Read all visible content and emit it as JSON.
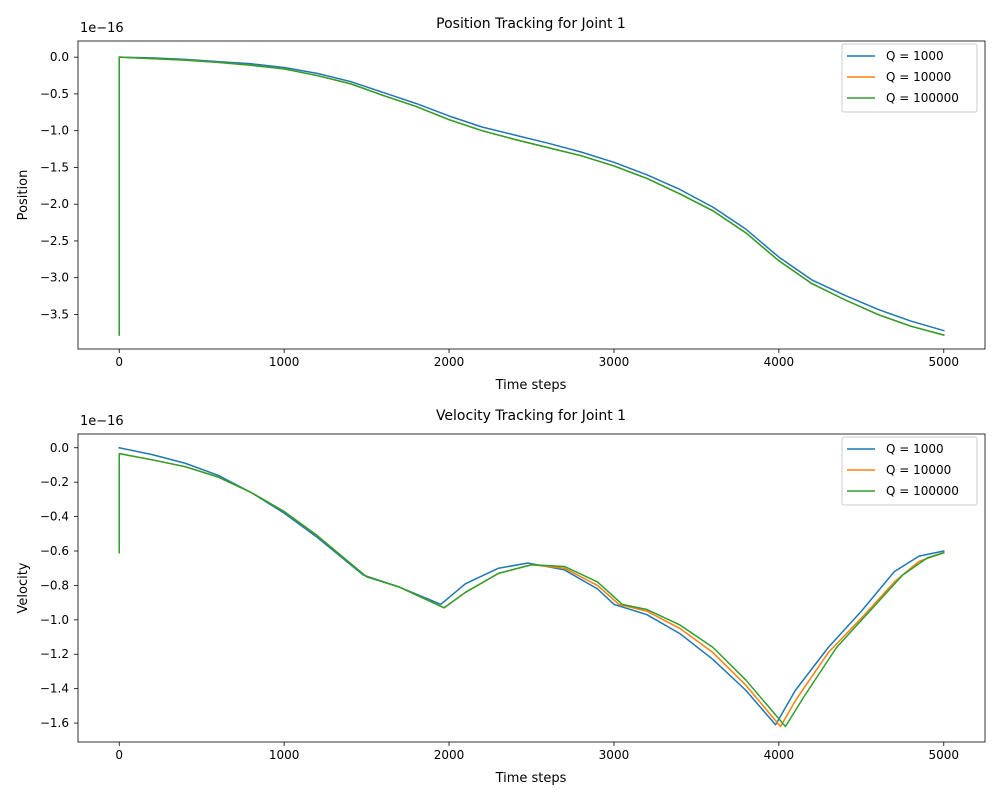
{
  "chart_data": [
    {
      "type": "line",
      "title": "Position Tracking for Joint 1",
      "xlabel": "Time steps",
      "ylabel": "Position",
      "offset_text": "1e−16",
      "xlim": [
        -250,
        5250
      ],
      "ylim": [
        -3.97,
        0.22
      ],
      "xticks": [
        0,
        1000,
        2000,
        3000,
        4000,
        5000
      ],
      "xtick_labels": [
        "0",
        "1000",
        "2000",
        "3000",
        "4000",
        "5000"
      ],
      "yticks": [
        0.0,
        -0.5,
        -1.0,
        -1.5,
        -2.0,
        -2.5,
        -3.0,
        -3.5
      ],
      "ytick_labels": [
        "0.0",
        "−0.5",
        "−1.0",
        "−1.5",
        "−2.0",
        "−2.5",
        "−3.0",
        "−3.5"
      ],
      "legend_position": "top-right",
      "grid": false,
      "series": [
        {
          "name": "Q = 1000",
          "color": "#1f77b4",
          "x": [
            0,
            200,
            400,
            600,
            800,
            1000,
            1200,
            1400,
            1600,
            1800,
            2000,
            2200,
            2400,
            2600,
            2800,
            3000,
            3200,
            3400,
            3600,
            3800,
            4000,
            4200,
            4400,
            4600,
            4800,
            5000
          ],
          "y": [
            0.0,
            -0.01,
            -0.03,
            -0.06,
            -0.09,
            -0.14,
            -0.22,
            -0.33,
            -0.48,
            -0.63,
            -0.8,
            -0.95,
            -1.06,
            -1.17,
            -1.29,
            -1.43,
            -1.6,
            -1.8,
            -2.04,
            -2.34,
            -2.72,
            -3.03,
            -3.24,
            -3.43,
            -3.59,
            -3.72
          ]
        },
        {
          "name": "Q = 10000",
          "color": "#ff7f0e",
          "x": [
            0,
            0.01,
            5,
            200,
            400,
            600,
            800,
            1000,
            1200,
            1400,
            1600,
            1800,
            2000,
            2200,
            2400,
            2600,
            2800,
            3000,
            3200,
            3400,
            3600,
            3800,
            4000,
            4200,
            4400,
            4600,
            4800,
            5000
          ],
          "y": [
            -3.78,
            0.0,
            0.0,
            -0.02,
            -0.04,
            -0.07,
            -0.11,
            -0.16,
            -0.25,
            -0.36,
            -0.52,
            -0.67,
            -0.85,
            -1.0,
            -1.12,
            -1.23,
            -1.34,
            -1.48,
            -1.65,
            -1.86,
            -2.09,
            -2.39,
            -2.77,
            -3.08,
            -3.3,
            -3.5,
            -3.66,
            -3.78
          ]
        },
        {
          "name": "Q = 100000",
          "color": "#2ca02c",
          "x": [
            0,
            0.01,
            5,
            200,
            400,
            600,
            800,
            1000,
            1200,
            1400,
            1600,
            1800,
            2000,
            2200,
            2400,
            2600,
            2800,
            3000,
            3200,
            3400,
            3600,
            3800,
            4000,
            4200,
            4400,
            4600,
            4800,
            5000
          ],
          "y": [
            -3.78,
            0.0,
            0.0,
            -0.02,
            -0.04,
            -0.07,
            -0.11,
            -0.16,
            -0.25,
            -0.36,
            -0.52,
            -0.67,
            -0.85,
            -1.0,
            -1.12,
            -1.23,
            -1.34,
            -1.48,
            -1.65,
            -1.86,
            -2.09,
            -2.39,
            -2.77,
            -3.08,
            -3.3,
            -3.5,
            -3.66,
            -3.78
          ]
        }
      ]
    },
    {
      "type": "line",
      "title": "Velocity Tracking for Joint 1",
      "xlabel": "Time steps",
      "ylabel": "Velocity",
      "offset_text": "1e−16",
      "xlim": [
        -250,
        5250
      ],
      "ylim": [
        -1.71,
        0.08
      ],
      "xticks": [
        0,
        1000,
        2000,
        3000,
        4000,
        5000
      ],
      "xtick_labels": [
        "0",
        "1000",
        "2000",
        "3000",
        "4000",
        "5000"
      ],
      "yticks": [
        0.0,
        -0.2,
        -0.4,
        -0.6,
        -0.8,
        -1.0,
        -1.2,
        -1.4,
        -1.6
      ],
      "ytick_labels": [
        "0.0",
        "−0.2",
        "−0.4",
        "−0.6",
        "−0.8",
        "−1.0",
        "−1.2",
        "−1.4",
        "−1.6"
      ],
      "legend_position": "top-right",
      "grid": false,
      "series": [
        {
          "name": "Q = 1000",
          "color": "#1f77b4",
          "x": [
            0,
            200,
            400,
            600,
            800,
            1000,
            1200,
            1480,
            1700,
            1950,
            2100,
            2300,
            2480,
            2700,
            2900,
            3000,
            3200,
            3400,
            3600,
            3800,
            3980,
            4100,
            4300,
            4500,
            4700,
            4850,
            5000
          ],
          "y": [
            0.0,
            -0.04,
            -0.09,
            -0.16,
            -0.26,
            -0.38,
            -0.52,
            -0.74,
            -0.81,
            -0.91,
            -0.79,
            -0.7,
            -0.67,
            -0.71,
            -0.82,
            -0.91,
            -0.97,
            -1.08,
            -1.23,
            -1.41,
            -1.61,
            -1.41,
            -1.16,
            -0.95,
            -0.72,
            -0.63,
            -0.6
          ]
        },
        {
          "name": "Q = 10000",
          "color": "#ff7f0e",
          "x": [
            0,
            0.01,
            5,
            200,
            400,
            600,
            800,
            1000,
            1200,
            1500,
            1700,
            1970,
            2100,
            2300,
            2500,
            2700,
            2900,
            3030,
            3200,
            3400,
            3600,
            3800,
            4010,
            4100,
            4300,
            4520,
            4700,
            4850,
            5000
          ],
          "y": [
            -0.61,
            -0.035,
            -0.035,
            -0.07,
            -0.11,
            -0.17,
            -0.26,
            -0.37,
            -0.51,
            -0.75,
            -0.81,
            -0.93,
            -0.84,
            -0.73,
            -0.68,
            -0.7,
            -0.8,
            -0.91,
            -0.95,
            -1.05,
            -1.19,
            -1.38,
            -1.62,
            -1.47,
            -1.19,
            -0.97,
            -0.78,
            -0.66,
            -0.61
          ]
        },
        {
          "name": "Q = 100000",
          "color": "#2ca02c",
          "x": [
            0,
            0.01,
            5,
            200,
            400,
            600,
            800,
            1000,
            1200,
            1500,
            1700,
            1970,
            2100,
            2300,
            2500,
            2700,
            2900,
            3050,
            3200,
            3400,
            3600,
            3800,
            4040,
            4150,
            4350,
            4570,
            4750,
            4900,
            5000
          ],
          "y": [
            -0.61,
            -0.035,
            -0.035,
            -0.07,
            -0.11,
            -0.17,
            -0.26,
            -0.37,
            -0.51,
            -0.75,
            -0.81,
            -0.93,
            -0.84,
            -0.73,
            -0.68,
            -0.69,
            -0.78,
            -0.91,
            -0.94,
            -1.03,
            -1.16,
            -1.35,
            -1.62,
            -1.45,
            -1.16,
            -0.93,
            -0.74,
            -0.64,
            -0.61
          ]
        }
      ]
    }
  ]
}
